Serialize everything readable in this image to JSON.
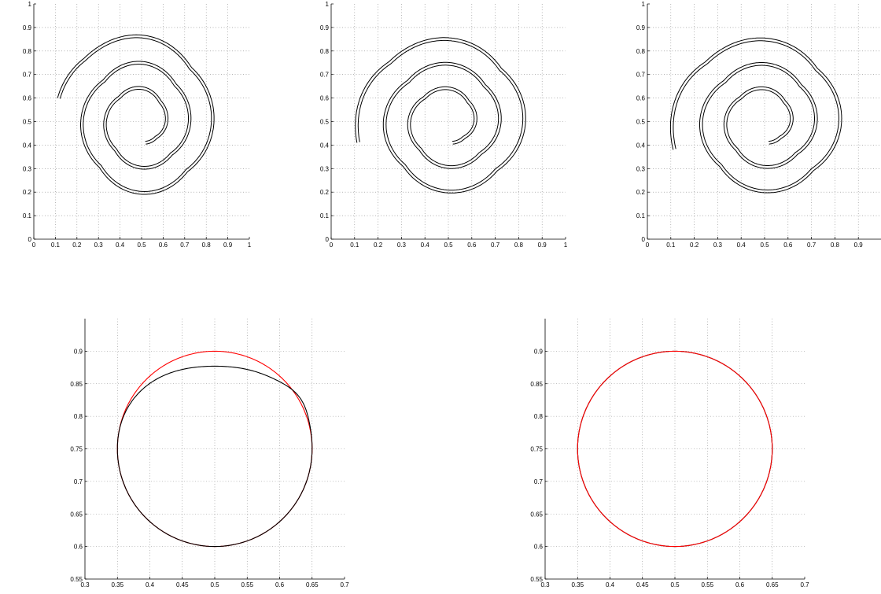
{
  "chart_data": [
    {
      "type": "line",
      "panel": "top-left",
      "xlim": [
        0,
        1
      ],
      "ylim": [
        0,
        1
      ],
      "grid": true,
      "xticks": [
        "0",
        "0.1",
        "0.2",
        "0.3",
        "0.4",
        "0.5",
        "0.6",
        "0.7",
        "0.8",
        "0.9",
        "1"
      ],
      "yticks": [
        "0",
        "0.1",
        "0.2",
        "0.3",
        "0.4",
        "0.5",
        "0.6",
        "0.7",
        "0.8",
        "0.9",
        "1"
      ],
      "series": [
        {
          "color": "#000000",
          "shape": "spiral",
          "center": [
            0.5,
            0.5
          ],
          "tip": [
            0.52,
            0.4
          ],
          "start": [
            0.11,
            0.6
          ],
          "turns": 2.6,
          "fragmented_start": true
        }
      ]
    },
    {
      "type": "line",
      "panel": "top-middle",
      "xlim": [
        0,
        1
      ],
      "ylim": [
        0,
        1
      ],
      "grid": true,
      "xticks": [
        "0",
        "0.1",
        "0.2",
        "0.3",
        "0.4",
        "0.5",
        "0.6",
        "0.7",
        "0.8",
        "0.9",
        "1"
      ],
      "yticks": [
        "0",
        "0.1",
        "0.2",
        "0.3",
        "0.4",
        "0.5",
        "0.6",
        "0.7",
        "0.8",
        "0.9",
        "1"
      ],
      "series": [
        {
          "color": "#000000",
          "shape": "spiral",
          "center": [
            0.5,
            0.5
          ],
          "tip": [
            0.52,
            0.4
          ],
          "start": [
            0.11,
            0.41
          ],
          "turns": 2.6,
          "fragmented_start": true
        }
      ]
    },
    {
      "type": "line",
      "panel": "top-right",
      "xlim": [
        0,
        1
      ],
      "ylim": [
        0,
        1
      ],
      "grid": true,
      "xticks": [
        "0",
        "0.1",
        "0.2",
        "0.3",
        "0.4",
        "0.5",
        "0.6",
        "0.7",
        "0.8",
        "0.9"
      ],
      "yticks": [
        "0",
        "0.1",
        "0.2",
        "0.3",
        "0.4",
        "0.5",
        "0.6",
        "0.7",
        "0.8",
        "0.9",
        "1"
      ],
      "series": [
        {
          "color": "#000000",
          "shape": "spiral",
          "center": [
            0.5,
            0.5
          ],
          "tip": [
            0.52,
            0.4
          ],
          "start": [
            0.11,
            0.38
          ],
          "turns": 2.6,
          "fragmented_start": false
        }
      ]
    },
    {
      "type": "line",
      "panel": "bottom-left",
      "xlim": [
        0.3,
        0.7
      ],
      "ylim": [
        0.55,
        0.95
      ],
      "grid": true,
      "xticks": [
        "0.3",
        "0.35",
        "0.4",
        "0.45",
        "0.5",
        "0.55",
        "0.6",
        "0.65",
        "0.7"
      ],
      "yticks": [
        "0.55",
        "0.6",
        "0.65",
        "0.7",
        "0.75",
        "0.8",
        "0.85",
        "0.9"
      ],
      "series": [
        {
          "color": "#ff0000",
          "shape": "circle",
          "center": [
            0.5,
            0.75
          ],
          "radius": 0.15
        },
        {
          "color": "#000000",
          "shape": "deformed-circle",
          "center": [
            0.5,
            0.75
          ],
          "radius": 0.15,
          "top_y": 0.877
        }
      ]
    },
    {
      "type": "line",
      "panel": "bottom-right",
      "xlim": [
        0.3,
        0.7
      ],
      "ylim": [
        0.55,
        0.95
      ],
      "grid": true,
      "xticks": [
        "0.3",
        "0.35",
        "0.4",
        "0.45",
        "0.5",
        "0.55",
        "0.6",
        "0.65",
        "0.7"
      ],
      "yticks": [
        "0.55",
        "0.6",
        "0.65",
        "0.7",
        "0.75",
        "0.8",
        "0.85",
        "0.9"
      ],
      "series": [
        {
          "color": "#000000",
          "shape": "circle",
          "center": [
            0.5,
            0.75
          ],
          "radius": 0.15
        },
        {
          "color": "#ff0000",
          "shape": "circle",
          "center": [
            0.5,
            0.75
          ],
          "radius": 0.15
        }
      ]
    }
  ]
}
